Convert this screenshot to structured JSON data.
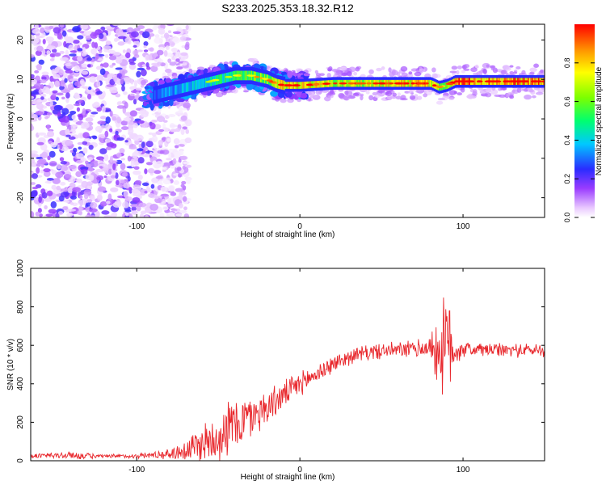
{
  "title": "S233.2025.353.18.32.R12",
  "chart_data": [
    {
      "type": "heatmap",
      "name": "spectrogram",
      "xlabel": "Height of straight line (km)",
      "ylabel": "Frequency (Hz)",
      "xlim": [
        -165,
        150
      ],
      "ylim": [
        -25,
        24
      ],
      "xticks": [
        -100,
        0,
        100
      ],
      "xtick_labels": [
        "-100",
        "0",
        "100"
      ],
      "yticks": [
        -20,
        -10,
        0,
        10,
        20
      ],
      "ytick_labels": [
        "-20",
        "-10",
        "0",
        "10",
        "20"
      ],
      "colorbar": {
        "label": "Normalized spectral amplitude",
        "range": [
          0.0,
          1.0
        ],
        "ticks": [
          0.0,
          0.2,
          0.4,
          0.6,
          0.8
        ],
        "tick_labels": [
          "0.0",
          "0.2",
          "0.4",
          "0.6",
          "0.8"
        ]
      },
      "ridge": {
        "description_free": true,
        "x": [
          -90,
          -80,
          -70,
          -60,
          -50,
          -40,
          -30,
          -20,
          -15,
          -10,
          0,
          20,
          40,
          60,
          80,
          85,
          90,
          95,
          100,
          120,
          150
        ],
        "frequency": [
          6,
          7,
          8,
          9,
          10,
          11,
          11,
          10,
          9,
          8.5,
          8.5,
          9,
          9,
          9,
          9,
          8,
          8.5,
          9.5,
          9.5,
          9.5,
          9.5
        ],
        "amplitude": [
          0.3,
          0.35,
          0.4,
          0.45,
          0.5,
          0.55,
          0.6,
          0.65,
          0.7,
          0.8,
          0.85,
          0.7,
          0.75,
          0.8,
          0.85,
          0.6,
          0.7,
          0.95,
          0.95,
          0.9,
          0.9
        ]
      },
      "noise_region_x": [
        -165,
        -80
      ]
    },
    {
      "type": "line",
      "name": "snr",
      "xlabel": "Height of straight line (km)",
      "ylabel": "SNR (10 * v/v)",
      "xlim": [
        -165,
        150
      ],
      "ylim": [
        0,
        1000
      ],
      "xticks": [
        -100,
        0,
        100
      ],
      "xtick_labels": [
        "-100",
        "0",
        "100"
      ],
      "yticks": [
        0,
        200,
        400,
        600,
        800,
        1000
      ],
      "ytick_labels": [
        "0",
        "200",
        "400",
        "600",
        "800",
        "1000"
      ],
      "color": "#e8262b",
      "envelope": {
        "x": [
          -165,
          -140,
          -120,
          -100,
          -80,
          -70,
          -60,
          -50,
          -40,
          -30,
          -20,
          -10,
          0,
          10,
          20,
          30,
          40,
          50,
          60,
          70,
          80,
          85,
          90,
          95,
          100,
          120,
          150
        ],
        "mean": [
          25,
          28,
          22,
          25,
          35,
          55,
          90,
          130,
          190,
          230,
          280,
          340,
          400,
          450,
          500,
          540,
          560,
          570,
          575,
          580,
          590,
          570,
          600,
          580,
          580,
          575,
          575
        ],
        "spread": [
          12,
          20,
          10,
          12,
          25,
          60,
          100,
          130,
          150,
          110,
          90,
          70,
          60,
          50,
          45,
          40,
          40,
          40,
          40,
          45,
          60,
          200,
          280,
          120,
          40,
          35,
          35
        ]
      }
    }
  ]
}
